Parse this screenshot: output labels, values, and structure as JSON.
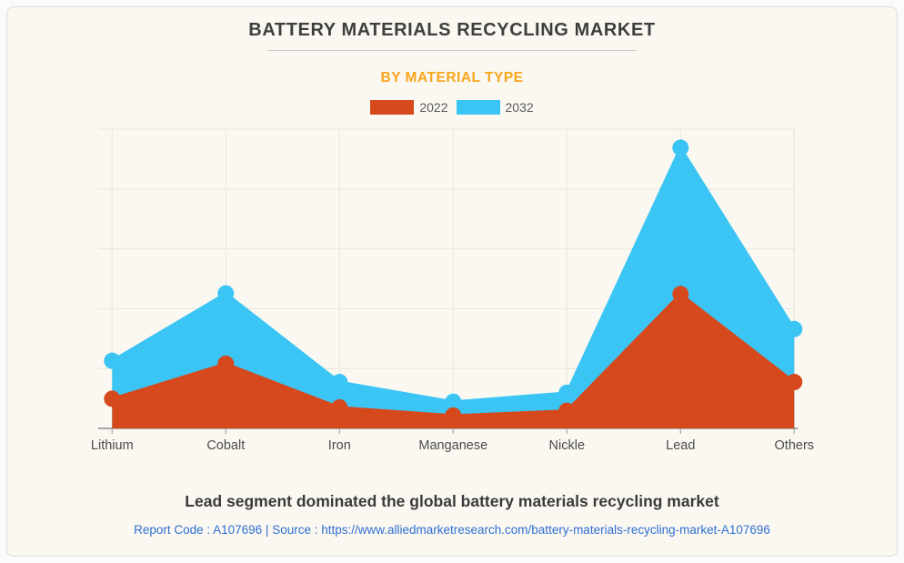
{
  "header": {
    "title": "BATTERY MATERIALS RECYCLING MARKET",
    "subtitle": "BY MATERIAL TYPE",
    "subtitle_color": "#f9a51c"
  },
  "legend": {
    "items": [
      {
        "label": "2022",
        "color": "#d5491d"
      },
      {
        "label": "2032",
        "color": "#3bc5f4"
      }
    ]
  },
  "chart_data": {
    "type": "area",
    "categories": [
      "Lithium",
      "Cobalt",
      "Iron",
      "Manganese",
      "Nickle",
      "Lead",
      "Others"
    ],
    "series": [
      {
        "name": "2022",
        "color": "#d5491d",
        "values": [
          9.9,
          21.6,
          7.0,
          4.3,
          5.9,
          44.9,
          15.5
        ]
      },
      {
        "name": "2032",
        "color": "#3bc5f4",
        "values": [
          22.6,
          45.1,
          15.5,
          8.9,
          11.9,
          93.8,
          33.2
        ]
      }
    ],
    "title": "BATTERY MATERIALS RECYCLING MARKET",
    "subtitle": "BY MATERIAL TYPE",
    "xlabel": "",
    "ylabel": "",
    "ylim": [
      0,
      100
    ],
    "y_axis_labels_visible": false,
    "grid": true,
    "legend_position": "top",
    "grid_color": "#e8e6de",
    "axis_color": "#a8a8a8",
    "label_color": "#4c4c4c"
  },
  "footer": {
    "caption": "Lead segment dominated the global battery materials recycling market",
    "report_line": "Report Code : A107696  |  Source : https://www.alliedmarketresearch.com/battery-materials-recycling-market-A107696",
    "link_color": "#2e6fd2"
  }
}
